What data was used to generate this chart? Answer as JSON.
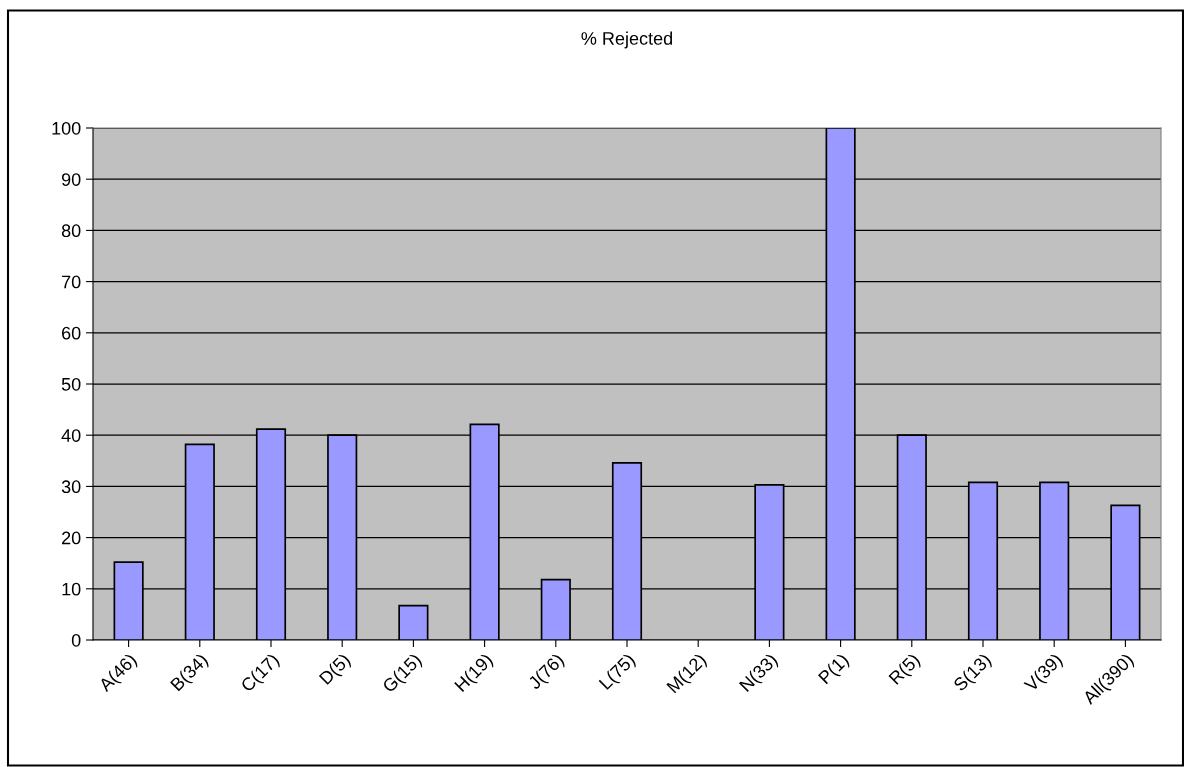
{
  "chart_data": {
    "type": "bar",
    "title": "% Rejected",
    "categories": [
      "A(46)",
      "B(34)",
      "C(17)",
      "D(5)",
      "G(15)",
      "H(19)",
      "J(76)",
      "L(75)",
      "M(12)",
      "N(33)",
      "P(1)",
      "R(5)",
      "S(13)",
      "V(39)",
      "All(390)"
    ],
    "values": [
      15.2,
      38.2,
      41.2,
      40,
      6.7,
      42.1,
      11.8,
      34.6,
      null,
      30.3,
      100,
      40,
      30.8,
      30.8,
      26.3
    ],
    "color": "#9999ff",
    "ylim": [
      0,
      100
    ],
    "yticks": [
      0,
      10,
      20,
      30,
      40,
      50,
      60,
      70,
      80,
      90,
      100
    ],
    "grid": "y"
  }
}
